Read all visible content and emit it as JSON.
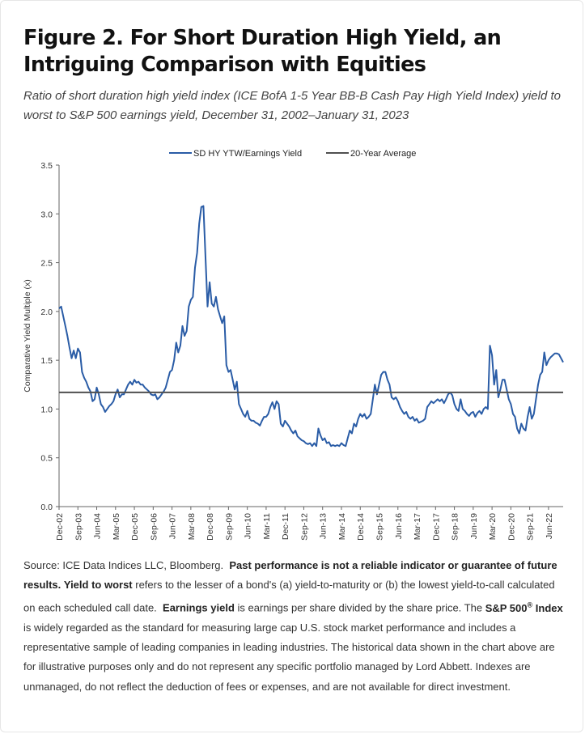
{
  "figure": {
    "title": "Figure 2. For Short Duration High Yield, an Intriguing Comparison with Equities",
    "subtitle": "Ratio of short duration high yield index (ICE BofA 1-5 Year BB-B Cash Pay High Yield Index) yield to worst to S&P 500 earnings yield, December 31, 2002–January 31, 2023"
  },
  "colors": {
    "series": "#2a5ca6",
    "average": "#505050",
    "axis": "#666666"
  },
  "source": {
    "p1": "Source: ICE Data Indices LLC, Bloomberg.",
    "b1": "Past performance is not a reliable indicator or guarantee of future results.",
    "b2": "Yield to worst",
    "p2": "refers to the lesser of a bond's (a) yield-to-maturity or (b) the lowest yield-to-call calculated on each scheduled call date.",
    "b3": "Earnings yield",
    "p3": "is earnings per share divided by the share price. The",
    "b4": "S&P 500",
    "b4_sup": "®",
    "b4_tail": "Index",
    "p4": "is widely regarded as the standard for measuring large cap U.S. stock market performance and includes a representative sample of leading companies in leading industries. The historical data shown in the chart above are for illustrative purposes only and do not represent any specific portfolio managed by Lord Abbett. Indexes are unmanaged, do not reflect the deduction of fees or expenses, and are not available for direct investment."
  },
  "chart_data": {
    "type": "line",
    "ylabel": "Comparative Yield Multiple (x)",
    "xlabel": "",
    "ylim": [
      0,
      3.5
    ],
    "yticks": [
      "0.0",
      "0.5",
      "1.0",
      "1.5",
      "2.0",
      "2.5",
      "3.0",
      "3.5"
    ],
    "xlim": [
      "2002-12",
      "2023-01"
    ],
    "xticks": [
      "Dec-02",
      "Sep-03",
      "Jun-04",
      "Mar-05",
      "Dec-05",
      "Sep-06",
      "Jun-07",
      "Mar-08",
      "Dec-08",
      "Sep-09",
      "Jun-10",
      "Mar-11",
      "Dec-11",
      "Sep-12",
      "Jun-13",
      "Mar-14",
      "Dec-14",
      "Sep-15",
      "Jun-16",
      "Mar-17",
      "Dec-17",
      "Sep-18",
      "Jun-19",
      "Mar-20",
      "Dec-20",
      "Sep-21",
      "Jun-22"
    ],
    "grid": false,
    "legend_position": "top",
    "series": [
      {
        "name": "SD HY YTW/Earnings Yield",
        "type": "line",
        "points": [
          [
            "2002-12",
            2.03
          ],
          [
            "2003-01",
            2.05
          ],
          [
            "2003-02",
            1.95
          ],
          [
            "2003-03",
            1.85
          ],
          [
            "2003-04",
            1.75
          ],
          [
            "2003-05",
            1.63
          ],
          [
            "2003-06",
            1.52
          ],
          [
            "2003-07",
            1.6
          ],
          [
            "2003-08",
            1.52
          ],
          [
            "2003-09",
            1.62
          ],
          [
            "2003-10",
            1.58
          ],
          [
            "2003-11",
            1.38
          ],
          [
            "2003-12",
            1.32
          ],
          [
            "2004-01",
            1.28
          ],
          [
            "2004-02",
            1.22
          ],
          [
            "2004-03",
            1.18
          ],
          [
            "2004-04",
            1.08
          ],
          [
            "2004-05",
            1.1
          ],
          [
            "2004-06",
            1.22
          ],
          [
            "2004-07",
            1.15
          ],
          [
            "2004-08",
            1.05
          ],
          [
            "2004-09",
            1.02
          ],
          [
            "2004-10",
            0.97
          ],
          [
            "2004-11",
            1.0
          ],
          [
            "2004-12",
            1.03
          ],
          [
            "2005-01",
            1.05
          ],
          [
            "2005-02",
            1.08
          ],
          [
            "2005-03",
            1.15
          ],
          [
            "2005-04",
            1.2
          ],
          [
            "2005-05",
            1.12
          ],
          [
            "2005-06",
            1.15
          ],
          [
            "2005-07",
            1.15
          ],
          [
            "2005-08",
            1.2
          ],
          [
            "2005-09",
            1.25
          ],
          [
            "2005-10",
            1.28
          ],
          [
            "2005-11",
            1.25
          ],
          [
            "2005-12",
            1.3
          ],
          [
            "2006-01",
            1.27
          ],
          [
            "2006-02",
            1.28
          ],
          [
            "2006-03",
            1.25
          ],
          [
            "2006-04",
            1.25
          ],
          [
            "2006-05",
            1.22
          ],
          [
            "2006-06",
            1.2
          ],
          [
            "2006-07",
            1.18
          ],
          [
            "2006-08",
            1.15
          ],
          [
            "2006-09",
            1.14
          ],
          [
            "2006-10",
            1.15
          ],
          [
            "2006-11",
            1.1
          ],
          [
            "2006-12",
            1.12
          ],
          [
            "2007-01",
            1.15
          ],
          [
            "2007-02",
            1.18
          ],
          [
            "2007-03",
            1.22
          ],
          [
            "2007-04",
            1.3
          ],
          [
            "2007-05",
            1.38
          ],
          [
            "2007-06",
            1.4
          ],
          [
            "2007-07",
            1.5
          ],
          [
            "2007-08",
            1.68
          ],
          [
            "2007-09",
            1.58
          ],
          [
            "2007-10",
            1.65
          ],
          [
            "2007-11",
            1.85
          ],
          [
            "2007-12",
            1.75
          ],
          [
            "2008-01",
            1.8
          ],
          [
            "2008-02",
            2.05
          ],
          [
            "2008-03",
            2.12
          ],
          [
            "2008-04",
            2.15
          ],
          [
            "2008-05",
            2.45
          ],
          [
            "2008-06",
            2.6
          ],
          [
            "2008-07",
            2.9
          ],
          [
            "2008-08",
            3.07
          ],
          [
            "2008-09",
            3.08
          ],
          [
            "2008-10",
            2.55
          ],
          [
            "2008-11",
            2.05
          ],
          [
            "2008-12",
            2.3
          ],
          [
            "2009-01",
            2.08
          ],
          [
            "2009-02",
            2.05
          ],
          [
            "2009-03",
            2.15
          ],
          [
            "2009-04",
            2.02
          ],
          [
            "2009-05",
            1.95
          ],
          [
            "2009-06",
            1.88
          ],
          [
            "2009-07",
            1.95
          ],
          [
            "2009-08",
            1.45
          ],
          [
            "2009-09",
            1.38
          ],
          [
            "2009-10",
            1.4
          ],
          [
            "2009-11",
            1.3
          ],
          [
            "2009-12",
            1.2
          ],
          [
            "2010-01",
            1.28
          ],
          [
            "2010-02",
            1.05
          ],
          [
            "2010-03",
            1.0
          ],
          [
            "2010-04",
            0.95
          ],
          [
            "2010-05",
            0.92
          ],
          [
            "2010-06",
            0.98
          ],
          [
            "2010-07",
            0.9
          ],
          [
            "2010-08",
            0.88
          ],
          [
            "2010-09",
            0.88
          ],
          [
            "2010-10",
            0.86
          ],
          [
            "2010-11",
            0.85
          ],
          [
            "2010-12",
            0.83
          ],
          [
            "2011-01",
            0.88
          ],
          [
            "2011-02",
            0.92
          ],
          [
            "2011-03",
            0.92
          ],
          [
            "2011-04",
            0.95
          ],
          [
            "2011-05",
            1.02
          ],
          [
            "2011-06",
            1.07
          ],
          [
            "2011-07",
            1.0
          ],
          [
            "2011-08",
            1.08
          ],
          [
            "2011-09",
            1.05
          ],
          [
            "2011-10",
            0.85
          ],
          [
            "2011-11",
            0.82
          ],
          [
            "2011-12",
            0.88
          ],
          [
            "2012-01",
            0.85
          ],
          [
            "2012-02",
            0.82
          ],
          [
            "2012-03",
            0.78
          ],
          [
            "2012-04",
            0.75
          ],
          [
            "2012-05",
            0.78
          ],
          [
            "2012-06",
            0.72
          ],
          [
            "2012-07",
            0.7
          ],
          [
            "2012-08",
            0.68
          ],
          [
            "2012-09",
            0.67
          ],
          [
            "2012-10",
            0.65
          ],
          [
            "2012-11",
            0.64
          ],
          [
            "2012-12",
            0.65
          ],
          [
            "2013-01",
            0.62
          ],
          [
            "2013-02",
            0.65
          ],
          [
            "2013-03",
            0.62
          ],
          [
            "2013-04",
            0.8
          ],
          [
            "2013-05",
            0.73
          ],
          [
            "2013-06",
            0.68
          ],
          [
            "2013-07",
            0.7
          ],
          [
            "2013-08",
            0.65
          ],
          [
            "2013-09",
            0.66
          ],
          [
            "2013-10",
            0.62
          ],
          [
            "2013-11",
            0.63
          ],
          [
            "2013-12",
            0.62
          ],
          [
            "2014-01",
            0.63
          ],
          [
            "2014-02",
            0.62
          ],
          [
            "2014-03",
            0.65
          ],
          [
            "2014-04",
            0.63
          ],
          [
            "2014-05",
            0.62
          ],
          [
            "2014-06",
            0.7
          ],
          [
            "2014-07",
            0.78
          ],
          [
            "2014-08",
            0.75
          ],
          [
            "2014-09",
            0.85
          ],
          [
            "2014-10",
            0.82
          ],
          [
            "2014-11",
            0.9
          ],
          [
            "2014-12",
            0.95
          ],
          [
            "2015-01",
            0.92
          ],
          [
            "2015-02",
            0.95
          ],
          [
            "2015-03",
            0.9
          ],
          [
            "2015-04",
            0.92
          ],
          [
            "2015-05",
            0.95
          ],
          [
            "2015-06",
            1.1
          ],
          [
            "2015-07",
            1.25
          ],
          [
            "2015-08",
            1.15
          ],
          [
            "2015-09",
            1.25
          ],
          [
            "2015-10",
            1.35
          ],
          [
            "2015-11",
            1.38
          ],
          [
            "2015-12",
            1.38
          ],
          [
            "2016-01",
            1.3
          ],
          [
            "2016-02",
            1.25
          ],
          [
            "2016-03",
            1.12
          ],
          [
            "2016-04",
            1.1
          ],
          [
            "2016-05",
            1.12
          ],
          [
            "2016-06",
            1.08
          ],
          [
            "2016-07",
            1.02
          ],
          [
            "2016-08",
            0.98
          ],
          [
            "2016-09",
            0.95
          ],
          [
            "2016-10",
            0.97
          ],
          [
            "2016-11",
            0.92
          ],
          [
            "2016-12",
            0.9
          ],
          [
            "2017-01",
            0.92
          ],
          [
            "2017-02",
            0.88
          ],
          [
            "2017-03",
            0.9
          ],
          [
            "2017-04",
            0.86
          ],
          [
            "2017-05",
            0.87
          ],
          [
            "2017-06",
            0.88
          ],
          [
            "2017-07",
            0.9
          ],
          [
            "2017-08",
            1.02
          ],
          [
            "2017-09",
            1.05
          ],
          [
            "2017-10",
            1.08
          ],
          [
            "2017-11",
            1.06
          ],
          [
            "2017-12",
            1.08
          ],
          [
            "2018-01",
            1.1
          ],
          [
            "2018-02",
            1.08
          ],
          [
            "2018-03",
            1.1
          ],
          [
            "2018-04",
            1.06
          ],
          [
            "2018-05",
            1.1
          ],
          [
            "2018-06",
            1.15
          ],
          [
            "2018-07",
            1.17
          ],
          [
            "2018-08",
            1.14
          ],
          [
            "2018-09",
            1.05
          ],
          [
            "2018-10",
            1.0
          ],
          [
            "2018-11",
            0.98
          ],
          [
            "2018-12",
            1.1
          ],
          [
            "2019-01",
            1.0
          ],
          [
            "2019-02",
            0.98
          ],
          [
            "2019-03",
            0.95
          ],
          [
            "2019-04",
            0.93
          ],
          [
            "2019-05",
            0.96
          ],
          [
            "2019-06",
            0.97
          ],
          [
            "2019-07",
            0.92
          ],
          [
            "2019-08",
            0.96
          ],
          [
            "2019-09",
            0.98
          ],
          [
            "2019-10",
            0.95
          ],
          [
            "2019-11",
            1.0
          ],
          [
            "2019-12",
            1.02
          ],
          [
            "2020-01",
            1.0
          ],
          [
            "2020-02",
            1.65
          ],
          [
            "2020-03",
            1.55
          ],
          [
            "2020-04",
            1.25
          ],
          [
            "2020-05",
            1.4
          ],
          [
            "2020-06",
            1.12
          ],
          [
            "2020-07",
            1.2
          ],
          [
            "2020-08",
            1.3
          ],
          [
            "2020-09",
            1.3
          ],
          [
            "2020-10",
            1.2
          ],
          [
            "2020-11",
            1.1
          ],
          [
            "2020-12",
            1.05
          ],
          [
            "2021-01",
            0.95
          ],
          [
            "2021-02",
            0.92
          ],
          [
            "2021-03",
            0.8
          ],
          [
            "2021-04",
            0.75
          ],
          [
            "2021-05",
            0.85
          ],
          [
            "2021-06",
            0.8
          ],
          [
            "2021-07",
            0.78
          ],
          [
            "2021-08",
            0.92
          ],
          [
            "2021-09",
            1.02
          ],
          [
            "2021-10",
            0.9
          ],
          [
            "2021-11",
            0.95
          ],
          [
            "2021-12",
            1.1
          ],
          [
            "2022-01",
            1.25
          ],
          [
            "2022-02",
            1.35
          ],
          [
            "2022-03",
            1.38
          ],
          [
            "2022-04",
            1.58
          ],
          [
            "2022-05",
            1.45
          ],
          [
            "2022-06",
            1.5
          ],
          [
            "2022-07",
            1.53
          ],
          [
            "2022-08",
            1.55
          ],
          [
            "2022-09",
            1.57
          ],
          [
            "2022-10",
            1.57
          ],
          [
            "2022-11",
            1.56
          ],
          [
            "2022-12",
            1.52
          ],
          [
            "2023-01",
            1.48
          ]
        ]
      },
      {
        "name": "20-Year Average",
        "type": "line",
        "points": [
          [
            "2002-12",
            1.17
          ],
          [
            "2023-01",
            1.17
          ]
        ]
      }
    ]
  }
}
